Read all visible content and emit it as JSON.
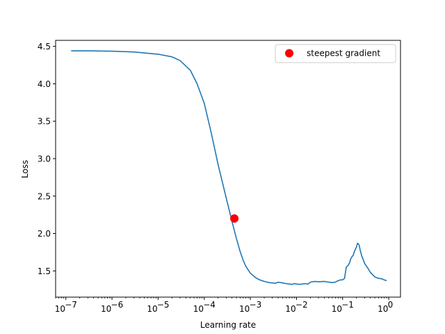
{
  "chart_data": {
    "type": "line",
    "xscale": "log",
    "xlabel": "Learning rate",
    "ylabel": "Loss",
    "xlim": [
      6e-08,
      1.8
    ],
    "ylim": [
      1.15,
      4.58
    ],
    "xticks": [
      {
        "value": 1e-07,
        "base": "10",
        "exp": "−7"
      },
      {
        "value": 1e-06,
        "base": "10",
        "exp": "−6"
      },
      {
        "value": 1e-05,
        "base": "10",
        "exp": "−5"
      },
      {
        "value": 0.0001,
        "base": "10",
        "exp": "−4"
      },
      {
        "value": 0.001,
        "base": "10",
        "exp": "−3"
      },
      {
        "value": 0.01,
        "base": "10",
        "exp": "−2"
      },
      {
        "value": 0.1,
        "base": "10",
        "exp": "−1"
      },
      {
        "value": 1,
        "base": "10",
        "exp": "0"
      }
    ],
    "yticks": [
      "1.5",
      "2.0",
      "2.5",
      "3.0",
      "3.5",
      "4.0",
      "4.5"
    ],
    "grid": false,
    "legend_position": "top-right",
    "series": [
      {
        "color": "#1f77b4",
        "x": [
          1.3e-07,
          3e-07,
          1e-06,
          3e-06,
          1e-05,
          2e-05,
          3e-05,
          5e-05,
          7e-05,
          0.0001,
          0.00014,
          0.0002,
          0.00028,
          0.0004,
          0.0005,
          0.0006,
          0.0007,
          0.0008,
          0.001,
          0.0013,
          0.0016,
          0.002,
          0.0025,
          0.003,
          0.0035,
          0.004,
          0.005,
          0.006,
          0.007,
          0.008,
          0.009,
          0.01,
          0.012,
          0.015,
          0.018,
          0.02,
          0.025,
          0.03,
          0.04,
          0.05,
          0.06,
          0.07,
          0.08,
          0.09,
          0.1,
          0.11,
          0.12,
          0.13,
          0.14,
          0.15,
          0.16,
          0.17,
          0.18,
          0.2,
          0.21,
          0.22,
          0.23,
          0.24,
          0.26,
          0.28,
          0.3,
          0.35,
          0.4,
          0.5,
          0.6,
          0.7,
          0.8,
          0.9
        ],
        "y": [
          4.44,
          4.44,
          4.435,
          4.425,
          4.395,
          4.36,
          4.31,
          4.18,
          4.0,
          3.74,
          3.36,
          2.92,
          2.55,
          2.16,
          1.93,
          1.76,
          1.64,
          1.56,
          1.47,
          1.41,
          1.38,
          1.36,
          1.345,
          1.34,
          1.335,
          1.35,
          1.34,
          1.33,
          1.325,
          1.32,
          1.33,
          1.325,
          1.32,
          1.33,
          1.325,
          1.35,
          1.36,
          1.355,
          1.36,
          1.35,
          1.345,
          1.35,
          1.37,
          1.38,
          1.38,
          1.4,
          1.55,
          1.57,
          1.6,
          1.66,
          1.69,
          1.71,
          1.76,
          1.82,
          1.87,
          1.86,
          1.84,
          1.78,
          1.7,
          1.65,
          1.6,
          1.54,
          1.48,
          1.42,
          1.4,
          1.395,
          1.38,
          1.37
        ]
      }
    ],
    "annotation": {
      "label": "steepest gradient",
      "x": 0.00045,
      "y": 2.2,
      "color": "#ff0000"
    }
  }
}
